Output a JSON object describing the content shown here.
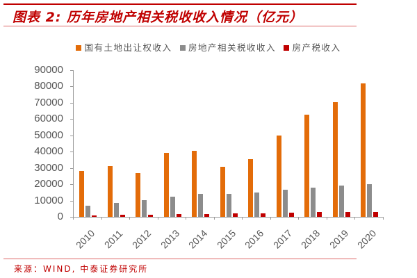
{
  "header": {
    "title": "图表 2:  历年房地产相关税收收入情况（亿元）"
  },
  "footer": {
    "source": "来源：WIND, 中泰证券研究所"
  },
  "colors": {
    "land": "#e36c09",
    "related_tax": "#8c8c8c",
    "property_tax": "#c00000",
    "title": "#c00000"
  },
  "chart_data": {
    "type": "bar",
    "title": "历年房地产相关税收收入情况（亿元）",
    "xlabel": "",
    "ylabel": "",
    "ylim": [
      0,
      90000
    ],
    "yticks": [
      "0",
      "10000",
      "20000",
      "30000",
      "40000",
      "50000",
      "60000",
      "70000",
      "80000",
      "90000"
    ],
    "grid": false,
    "legend_position": "top",
    "categories": [
      "2010",
      "2011",
      "2012",
      "2013",
      "2014",
      "2015",
      "2016",
      "2017",
      "2018",
      "2019",
      "2020"
    ],
    "series": [
      {
        "name": "国有土地出让权收入",
        "color": "#e36c09",
        "values": [
          28200,
          31200,
          26900,
          39300,
          40600,
          30800,
          35500,
          50000,
          62800,
          70500,
          82000
        ]
      },
      {
        "name": "房地产相关税收收入",
        "color": "#8c8c8c",
        "values": [
          6800,
          8600,
          10300,
          12400,
          14100,
          14100,
          15000,
          16700,
          18000,
          19300,
          20000
        ]
      },
      {
        "name": "房产税收入",
        "color": "#c00000",
        "values": [
          1000,
          1100,
          1400,
          1600,
          1900,
          2100,
          2200,
          2600,
          2900,
          3000,
          2800
        ]
      }
    ]
  }
}
